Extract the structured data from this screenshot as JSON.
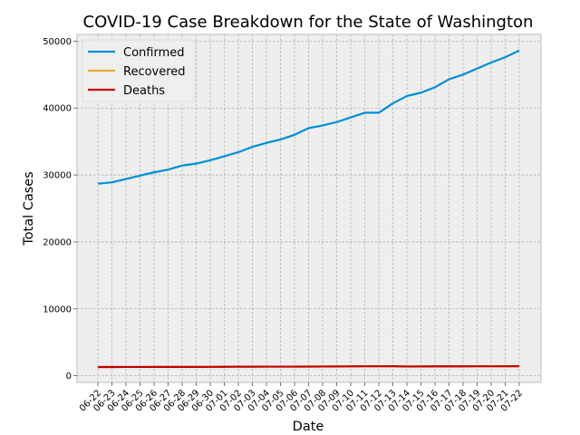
{
  "chart_data": {
    "type": "line",
    "title": "COVID-19 Case Breakdown for the State of Washington",
    "xlabel": "Date",
    "ylabel": "Total Cases",
    "ylim": [
      -1000,
      51000
    ],
    "yticks": [
      0,
      10000,
      20000,
      30000,
      40000,
      50000
    ],
    "ytick_labels": [
      "0",
      "10000",
      "20000",
      "30000",
      "40000",
      "50000"
    ],
    "grid": true,
    "legend_position": "top-left",
    "categories": [
      "06-22",
      "06-23",
      "06-24",
      "06-25",
      "06-26",
      "06-27",
      "06-28",
      "06-29",
      "06-30",
      "07-01",
      "07-02",
      "07-03",
      "07-04",
      "07-05",
      "07-06",
      "07-07",
      "07-08",
      "07-09",
      "07-10",
      "07-11",
      "07-12",
      "07-13",
      "07-14",
      "07-15",
      "07-16",
      "07-17",
      "07-18",
      "07-19",
      "07-20",
      "07-21",
      "07-22"
    ],
    "series": [
      {
        "name": "Confirmed",
        "color": "#008fd5",
        "values": [
          28700,
          28900,
          29400,
          29900,
          30400,
          30800,
          31400,
          31700,
          32200,
          32800,
          33400,
          34200,
          34800,
          35300,
          36000,
          37000,
          37400,
          37900,
          38600,
          39300,
          39300,
          40700,
          41800,
          42300,
          43100,
          44300,
          45000,
          45900,
          46800,
          47600,
          48600
        ]
      },
      {
        "name": "Recovered",
        "color": "#e5ae38",
        "values": [
          1300,
          1300,
          1310,
          1310,
          1320,
          1320,
          1320,
          1320,
          1330,
          1340,
          1350,
          1350,
          1360,
          1360,
          1360,
          1370,
          1380,
          1390,
          1400,
          1410,
          1410,
          1420,
          1380,
          1390,
          1400,
          1400,
          1400,
          1410,
          1410,
          1410,
          1420
        ]
      },
      {
        "name": "Deaths",
        "color": "#c10000",
        "values": [
          1300,
          1300,
          1310,
          1310,
          1320,
          1320,
          1320,
          1320,
          1330,
          1340,
          1350,
          1350,
          1360,
          1360,
          1360,
          1370,
          1380,
          1390,
          1400,
          1410,
          1410,
          1420,
          1380,
          1390,
          1400,
          1400,
          1400,
          1410,
          1410,
          1410,
          1420
        ]
      }
    ]
  }
}
